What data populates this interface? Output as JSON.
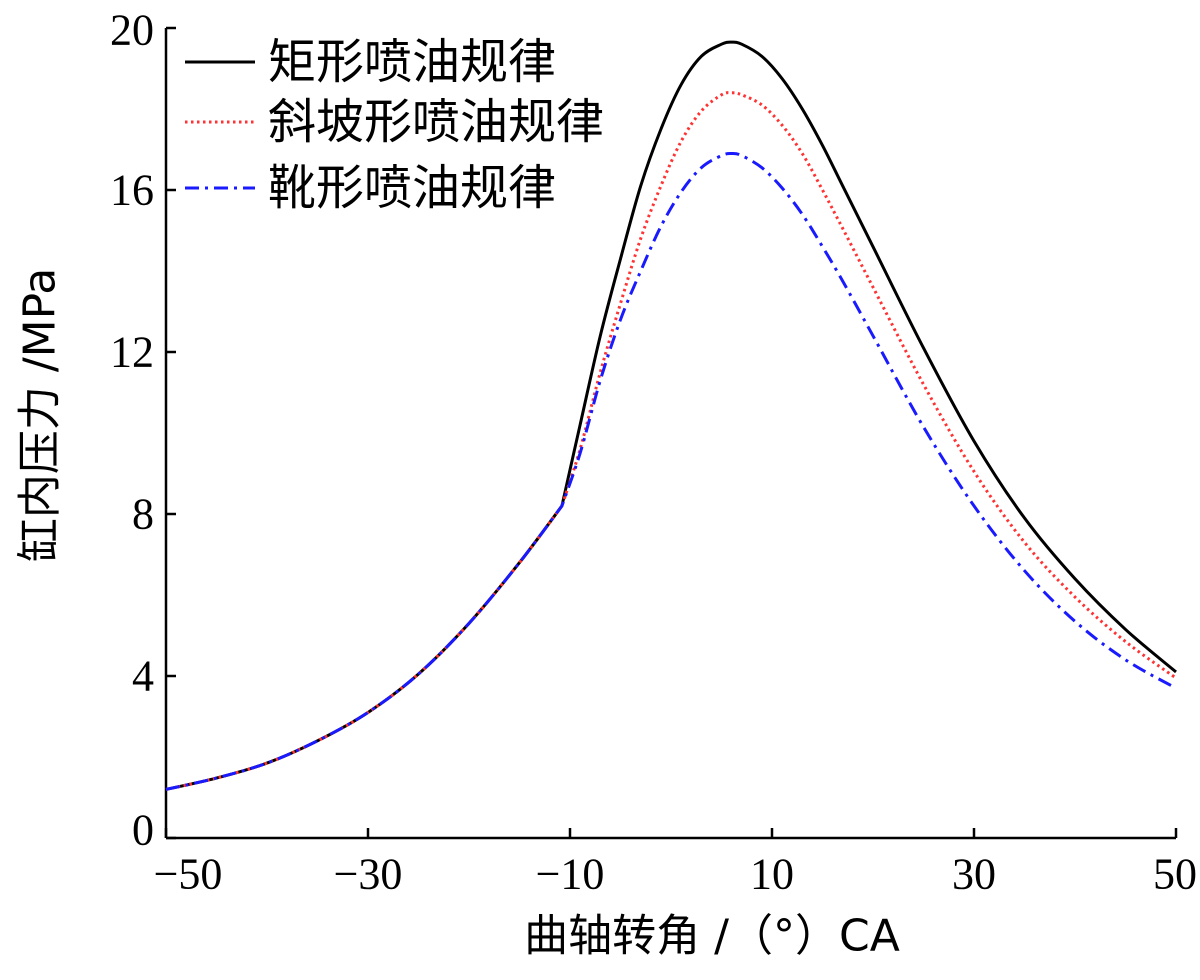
{
  "chart_data": {
    "type": "line",
    "xlabel": "曲轴转角 /（°）CA",
    "ylabel": "缸内压力 /MPa",
    "xlim": [
      -50,
      50
    ],
    "ylim": [
      0,
      20
    ],
    "x_ticks": [
      -50,
      -30,
      -10,
      10,
      30,
      50
    ],
    "x_tick_labels": [
      "−50",
      "−30",
      "−10",
      "10",
      "30",
      "50"
    ],
    "y_ticks": [
      0,
      4,
      8,
      12,
      16,
      20
    ],
    "y_tick_labels": [
      "0",
      "4",
      "8",
      "12",
      "16",
      "20"
    ],
    "grid": false,
    "legend_position": "top-left",
    "x": [
      -50,
      -45,
      -40,
      -35,
      -30,
      -25,
      -20,
      -15,
      -10.8,
      -9,
      -7,
      -5,
      -3,
      -1,
      1,
      3,
      5,
      6,
      7,
      9,
      11,
      13,
      15,
      17,
      20,
      25,
      30,
      35,
      40,
      45,
      50
    ],
    "series": [
      {
        "name": "矩形喷油规律",
        "color": "#000000",
        "values": [
          1.2,
          1.48,
          1.85,
          2.4,
          3.1,
          4.05,
          5.3,
          6.8,
          8.2,
          10.2,
          12.4,
          14.3,
          16.1,
          17.5,
          18.6,
          19.3,
          19.6,
          19.65,
          19.6,
          19.3,
          18.75,
          18.0,
          17.1,
          16.1,
          14.6,
          12.1,
          9.8,
          7.9,
          6.4,
          5.15,
          4.1
        ]
      },
      {
        "name": "斜坡形喷油规律",
        "color": "#ff3333",
        "values": [
          1.2,
          1.48,
          1.85,
          2.4,
          3.1,
          4.05,
          5.3,
          6.8,
          8.2,
          9.6,
          11.5,
          13.2,
          14.8,
          16.1,
          17.2,
          17.95,
          18.35,
          18.4,
          18.35,
          18.1,
          17.6,
          16.9,
          16.0,
          15.05,
          13.6,
          11.2,
          9.05,
          7.3,
          5.95,
          4.85,
          3.95
        ]
      },
      {
        "name": "靴形喷油规律",
        "color": "#1a1aff",
        "values": [
          1.2,
          1.48,
          1.85,
          2.4,
          3.1,
          4.05,
          5.3,
          6.8,
          8.2,
          9.5,
          11.3,
          12.8,
          14.0,
          15.1,
          15.95,
          16.55,
          16.85,
          16.9,
          16.85,
          16.55,
          16.05,
          15.4,
          14.6,
          13.75,
          12.4,
          10.15,
          8.2,
          6.6,
          5.35,
          4.4,
          3.7
        ]
      }
    ]
  }
}
